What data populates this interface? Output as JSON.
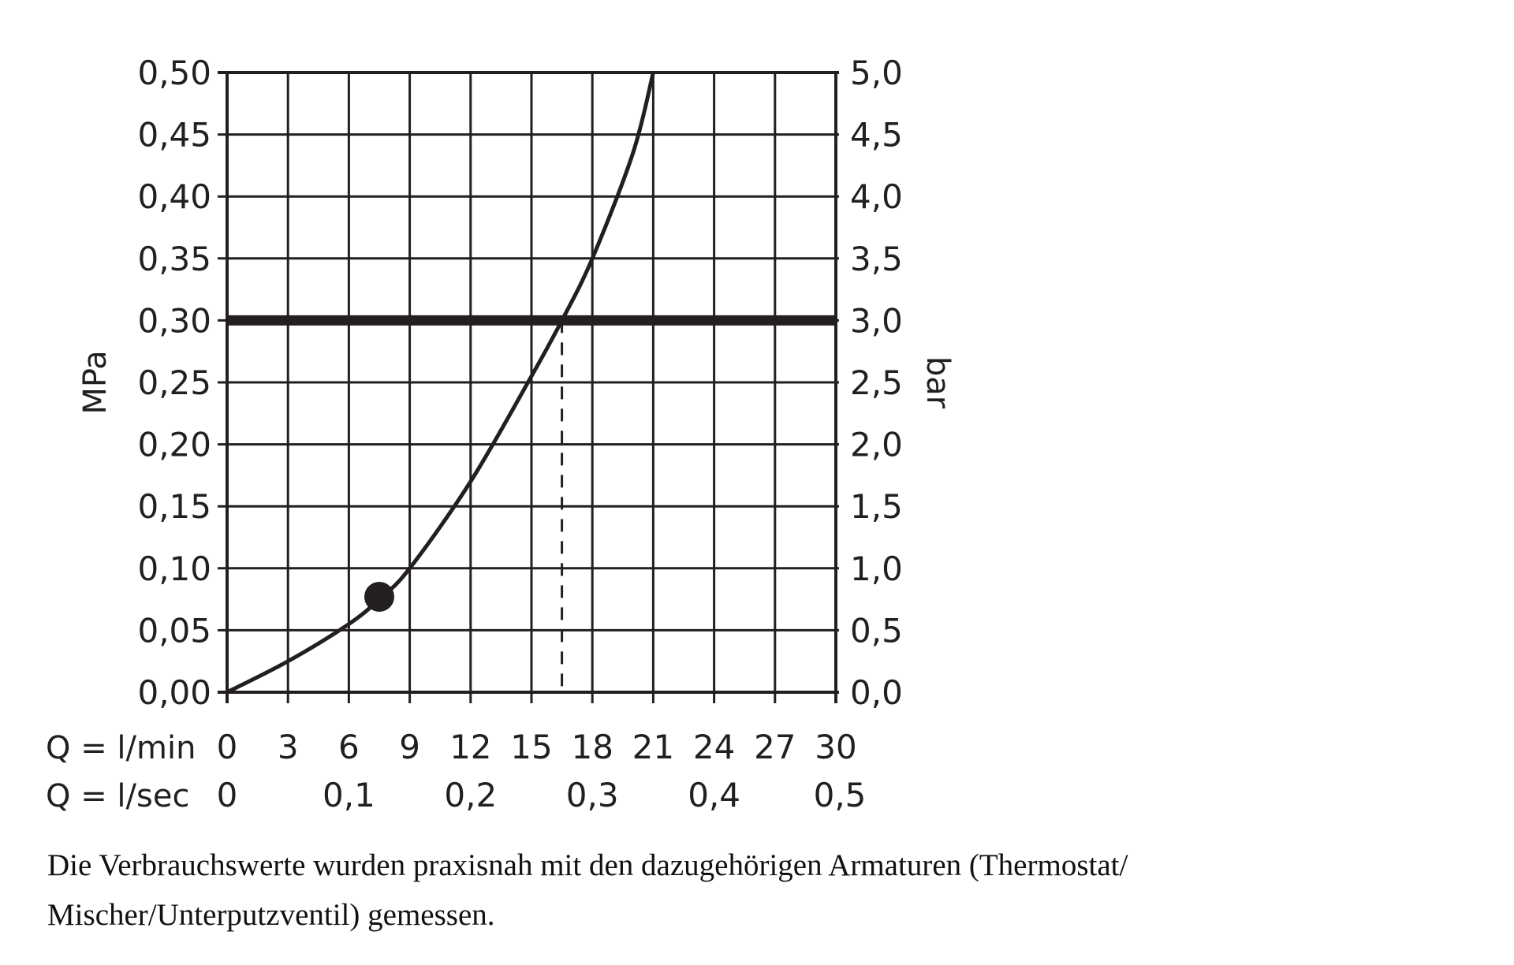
{
  "chart_data": {
    "type": "line",
    "xlabel_rows": [
      "Q = l/min",
      "Q = l/sec"
    ],
    "ylabel_left": "MPa",
    "ylabel_right": "bar",
    "xlim": [
      0,
      30
    ],
    "ylim": [
      0,
      0.5
    ],
    "grid": true,
    "x_ticks_lmin": [
      "0",
      "3",
      "6",
      "9",
      "12",
      "15",
      "18",
      "21",
      "24",
      "27",
      "30"
    ],
    "x_ticks_lsec": [
      "0",
      "0,1",
      "0,2",
      "0,3",
      "0,4",
      "0,5"
    ],
    "y_ticks_left": [
      "0,00",
      "0,05",
      "0,10",
      "0,15",
      "0,20",
      "0,25",
      "0,30",
      "0,35",
      "0,40",
      "0,45",
      "0,50"
    ],
    "y_ticks_right": [
      "0,0",
      "0,5",
      "1,0",
      "1,5",
      "2,0",
      "2,5",
      "3,0",
      "3,5",
      "4,0",
      "4,5",
      "5,0"
    ],
    "series": [
      {
        "x": [
          0,
          3,
          6,
          7.5,
          9,
          12,
          15,
          16.5,
          18,
          20,
          21
        ],
        "y": [
          0,
          0.025,
          0.055,
          0.075,
          0.1,
          0.17,
          0.255,
          0.3,
          0.35,
          0.435,
          0.5
        ]
      }
    ],
    "marker_point": {
      "x": 7.5,
      "y": 0.077
    },
    "reference_line_y": 0.3,
    "reference_dashed_x": 16.5,
    "color": "#231f20"
  },
  "caption": {
    "line1": "Die Verbrauchswerte wurden praxisnah mit den dazugehörigen Armaturen (Thermostat/",
    "line2": "Mischer/Unterputzventil) gemessen."
  }
}
